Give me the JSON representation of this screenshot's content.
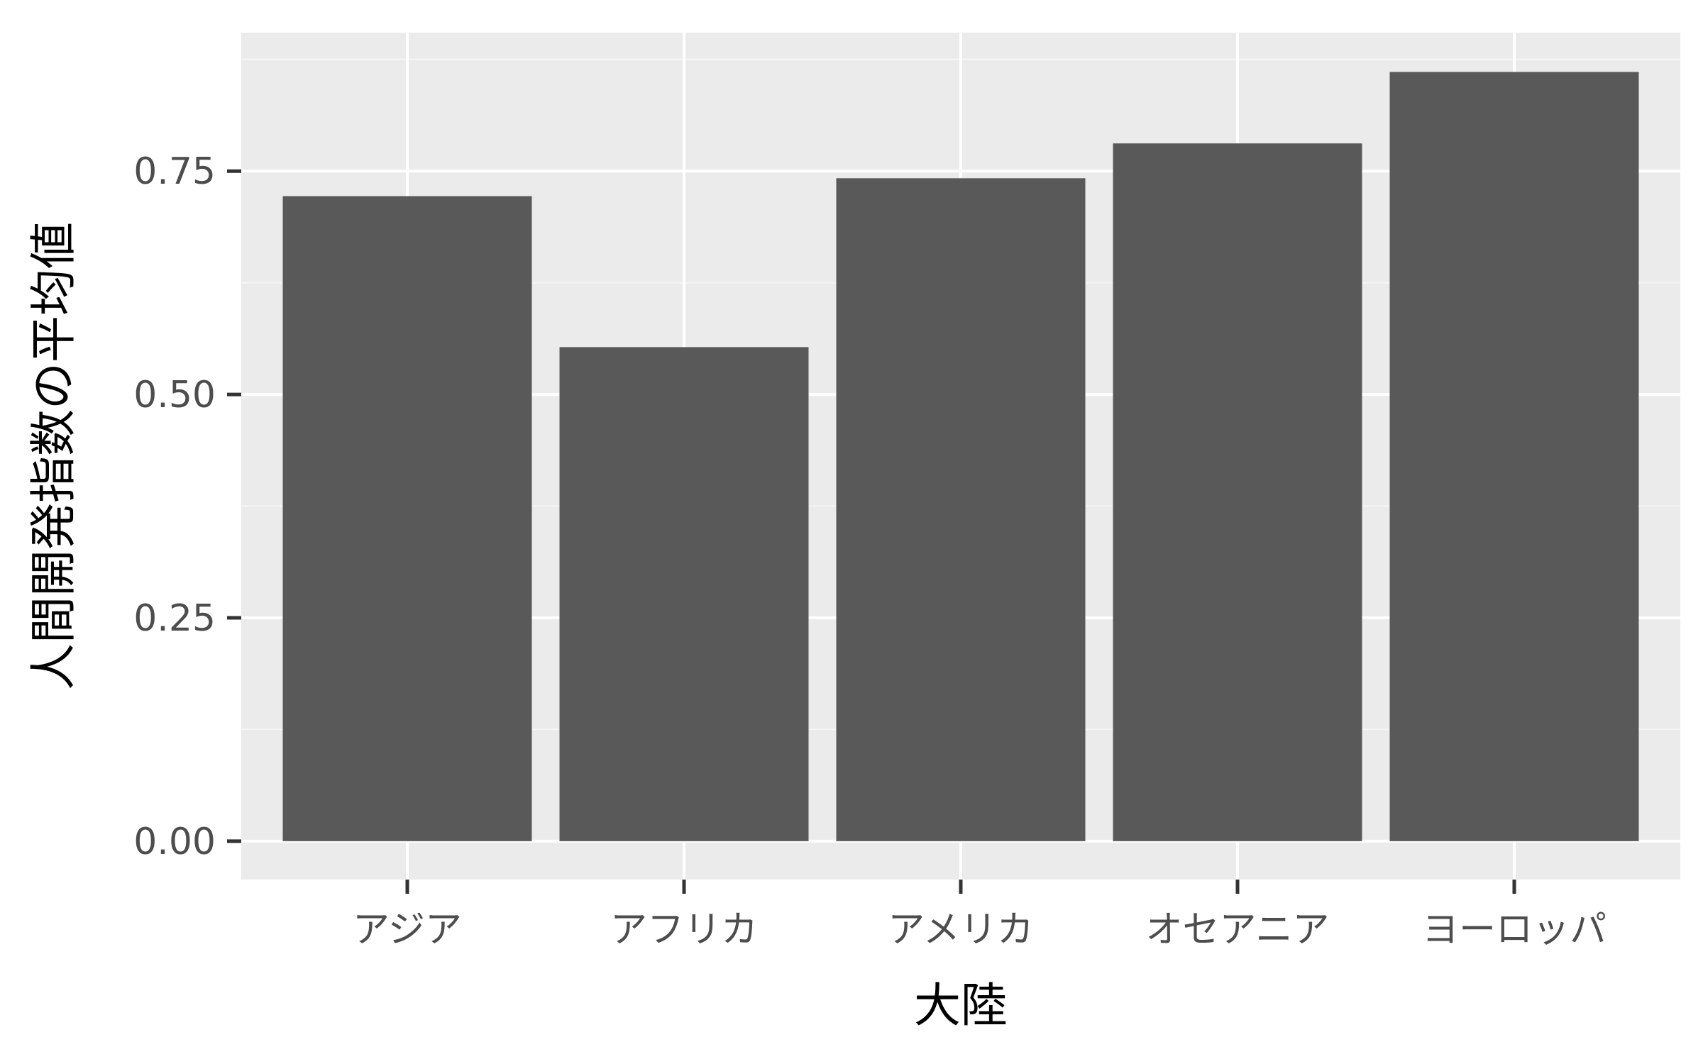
{
  "chart_data": {
    "type": "bar",
    "categories": [
      "アジア",
      "アフリカ",
      "アメリカ",
      "オセアニア",
      "ヨーロッパ"
    ],
    "values": [
      0.722,
      0.553,
      0.742,
      0.781,
      0.861
    ],
    "xlabel": "大陸",
    "ylabel": "人間開発指数の平均値",
    "ylim": [
      -0.043,
      0.905
    ],
    "y_ticks": [
      "0.00",
      "0.25",
      "0.50",
      "0.75"
    ],
    "grid": true,
    "legend": "none",
    "colors": {
      "bar": "#595959",
      "panel_background": "#ebebeb",
      "grid_major": "#ffffff",
      "grid_minor": "#f5f5f5",
      "tick": "#333333"
    }
  }
}
